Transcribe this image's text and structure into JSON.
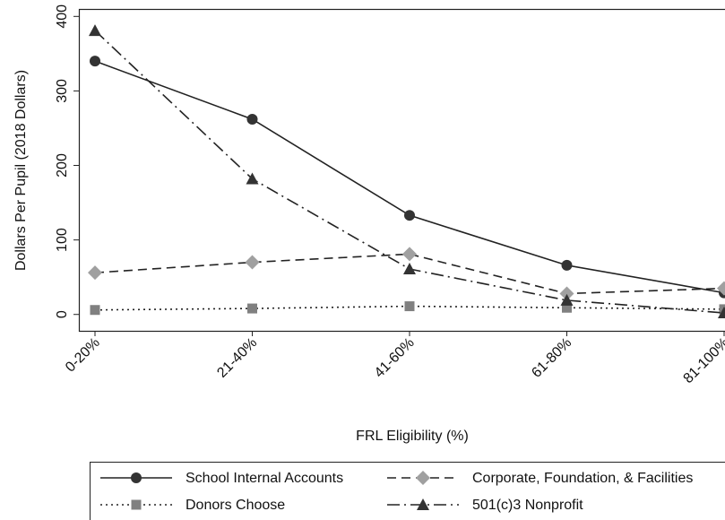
{
  "chart_data": {
    "type": "line",
    "x_label": "FRL Eligibility (%)",
    "y_label": "Dollars Per Pupil (2018 Dollars)",
    "categories": [
      "0-20%",
      "21-40%",
      "41-60%",
      "61-80%",
      "81-100%"
    ],
    "ylim": [
      -22,
      410
    ],
    "yticks": [
      0,
      100,
      200,
      300,
      400
    ],
    "series": [
      {
        "name": "School Internal Accounts",
        "color": "#333333",
        "line_color": "#222222",
        "dash": "solid",
        "marker": "circle",
        "values": [
          340,
          262,
          133,
          66,
          29
        ]
      },
      {
        "name": "Corporate, Foundation, & Facilities",
        "color": "#a0a0a0",
        "line_color": "#222222",
        "dash": "dashed",
        "marker": "diamond",
        "values": [
          56,
          70,
          81,
          28,
          35
        ]
      },
      {
        "name": "Donors Choose",
        "color": "#808080",
        "line_color": "#222222",
        "dash": "dotted",
        "marker": "square",
        "values": [
          6,
          8,
          11,
          9,
          7
        ]
      },
      {
        "name": "501(c)3 Nonprofit",
        "color": "#333333",
        "line_color": "#222222",
        "dash": "dashdot",
        "marker": "triangle",
        "values": [
          381,
          182,
          61,
          19,
          2
        ]
      }
    ]
  }
}
